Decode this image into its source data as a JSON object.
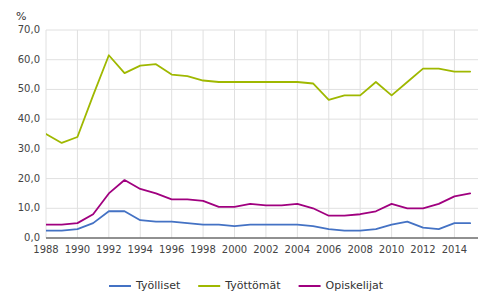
{
  "chart_data": {
    "type": "line",
    "ylabel": "%",
    "x": [
      1988,
      1989,
      1990,
      1991,
      1992,
      1993,
      1994,
      1995,
      1996,
      1997,
      1998,
      1999,
      2000,
      2001,
      2002,
      2003,
      2004,
      2005,
      2006,
      2007,
      2008,
      2009,
      2010,
      2011,
      2012,
      2013,
      2014,
      2015
    ],
    "series": [
      {
        "name": "Työlliset",
        "color": "#4472C4",
        "values": [
          2.5,
          2.5,
          3.0,
          5.0,
          9.0,
          9.0,
          6.0,
          5.5,
          5.5,
          5.0,
          4.5,
          4.5,
          4.0,
          4.5,
          4.5,
          4.5,
          4.5,
          4.0,
          3.0,
          2.5,
          2.5,
          3.0,
          4.5,
          5.5,
          3.5,
          3.0,
          5.0,
          5.0
        ]
      },
      {
        "name": "Työttömät",
        "color": "#9FB800",
        "values": [
          35.0,
          32.0,
          34.0,
          48.0,
          61.5,
          55.5,
          58.0,
          58.5,
          55.0,
          54.5,
          53.0,
          52.5,
          52.5,
          52.5,
          52.5,
          52.5,
          52.5,
          52.0,
          46.5,
          48.0,
          48.0,
          52.5,
          48.0,
          52.5,
          57.0,
          57.0,
          56.0,
          56.0
        ]
      },
      {
        "name": "Opiskelijat",
        "color": "#A0007F",
        "values": [
          4.5,
          4.5,
          5.0,
          8.0,
          15.0,
          19.5,
          16.5,
          15.0,
          13.0,
          13.0,
          12.5,
          10.5,
          10.5,
          11.5,
          11.0,
          11.0,
          11.5,
          10.0,
          7.5,
          7.5,
          8.0,
          9.0,
          11.5,
          10.0,
          10.0,
          11.5,
          14.0,
          15.0
        ]
      }
    ],
    "xlim": [
      1988,
      2015.5
    ],
    "xticks": [
      1988,
      1990,
      1992,
      1994,
      1996,
      1998,
      2000,
      2002,
      2004,
      2006,
      2008,
      2010,
      2012,
      2014
    ],
    "ylim": [
      0,
      70
    ],
    "yticks": [
      {
        "value": 0,
        "label": "0,0"
      },
      {
        "value": 10,
        "label": "10,0"
      },
      {
        "value": 20,
        "label": "20,0"
      },
      {
        "value": 30,
        "label": "30,0"
      },
      {
        "value": 40,
        "label": "40,0"
      },
      {
        "value": 50,
        "label": "50,0"
      },
      {
        "value": 60,
        "label": "60,0"
      },
      {
        "value": 70,
        "label": "70,0"
      }
    ],
    "grid": true,
    "legend": "bottom"
  }
}
